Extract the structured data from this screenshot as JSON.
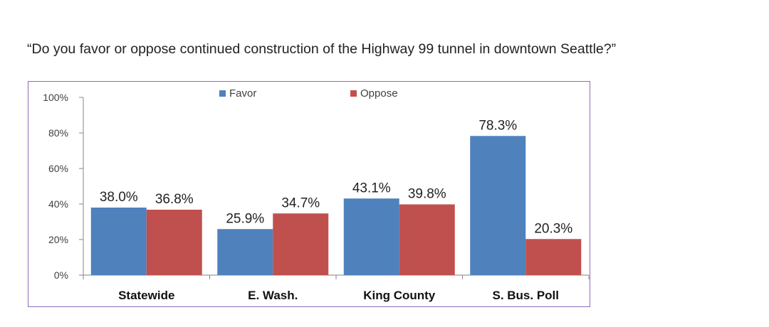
{
  "question": "“Do you favor or oppose continued construction of the Highway 99 tunnel in downtown Seattle?”",
  "chart_data": {
    "type": "bar",
    "categories": [
      "Statewide",
      "E. Wash.",
      "King County",
      "S. Bus. Poll"
    ],
    "series": [
      {
        "name": "Favor",
        "values": [
          38.0,
          25.9,
          43.1,
          78.3
        ],
        "labels": [
          "38.0%",
          "25.9%",
          "43.1%",
          "78.3%"
        ],
        "color": "#4f81bd"
      },
      {
        "name": "Oppose",
        "values": [
          36.8,
          34.7,
          39.8,
          20.3
        ],
        "labels": [
          "36.8%",
          "34.7%",
          "39.8%",
          "20.3%"
        ],
        "color": "#c0504d"
      }
    ],
    "yticks": [
      "0%",
      "20%",
      "40%",
      "60%",
      "80%",
      "100%"
    ],
    "ylim": [
      0,
      100
    ],
    "grid": false,
    "legend": "top"
  },
  "colors": {
    "frame": "#8f6bb8"
  }
}
